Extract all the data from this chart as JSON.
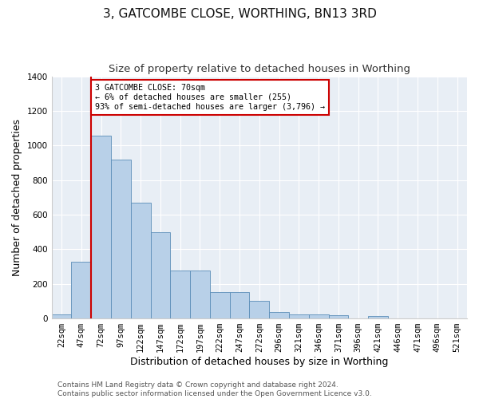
{
  "title": "3, GATCOMBE CLOSE, WORTHING, BN13 3RD",
  "subtitle": "Size of property relative to detached houses in Worthing",
  "xlabel": "Distribution of detached houses by size in Worthing",
  "ylabel": "Number of detached properties",
  "categories": [
    "22sqm",
    "47sqm",
    "72sqm",
    "97sqm",
    "122sqm",
    "147sqm",
    "172sqm",
    "197sqm",
    "222sqm",
    "247sqm",
    "272sqm",
    "296sqm",
    "321sqm",
    "346sqm",
    "371sqm",
    "396sqm",
    "421sqm",
    "446sqm",
    "471sqm",
    "496sqm",
    "521sqm"
  ],
  "values": [
    22,
    330,
    1055,
    920,
    668,
    500,
    275,
    275,
    152,
    152,
    102,
    38,
    25,
    25,
    18,
    0,
    12,
    0,
    0,
    0,
    0
  ],
  "bar_color": "#b8d0e8",
  "bar_edge_color": "#5b8db8",
  "property_line_color": "#cc0000",
  "property_line_idx": 2,
  "annotation_text": "3 GATCOMBE CLOSE: 70sqm\n← 6% of detached houses are smaller (255)\n93% of semi-detached houses are larger (3,796) →",
  "annotation_box_facecolor": "#ffffff",
  "annotation_box_edgecolor": "#cc0000",
  "ylim": [
    0,
    1400
  ],
  "yticks": [
    0,
    200,
    400,
    600,
    800,
    1000,
    1200,
    1400
  ],
  "footer": "Contains HM Land Registry data © Crown copyright and database right 2024.\nContains public sector information licensed under the Open Government Licence v3.0.",
  "fig_facecolor": "#ffffff",
  "ax_facecolor": "#e8eef5",
  "grid_color": "#ffffff",
  "title_fontsize": 11,
  "subtitle_fontsize": 9.5,
  "axis_label_fontsize": 9,
  "tick_fontsize": 7.5,
  "footer_fontsize": 6.5
}
